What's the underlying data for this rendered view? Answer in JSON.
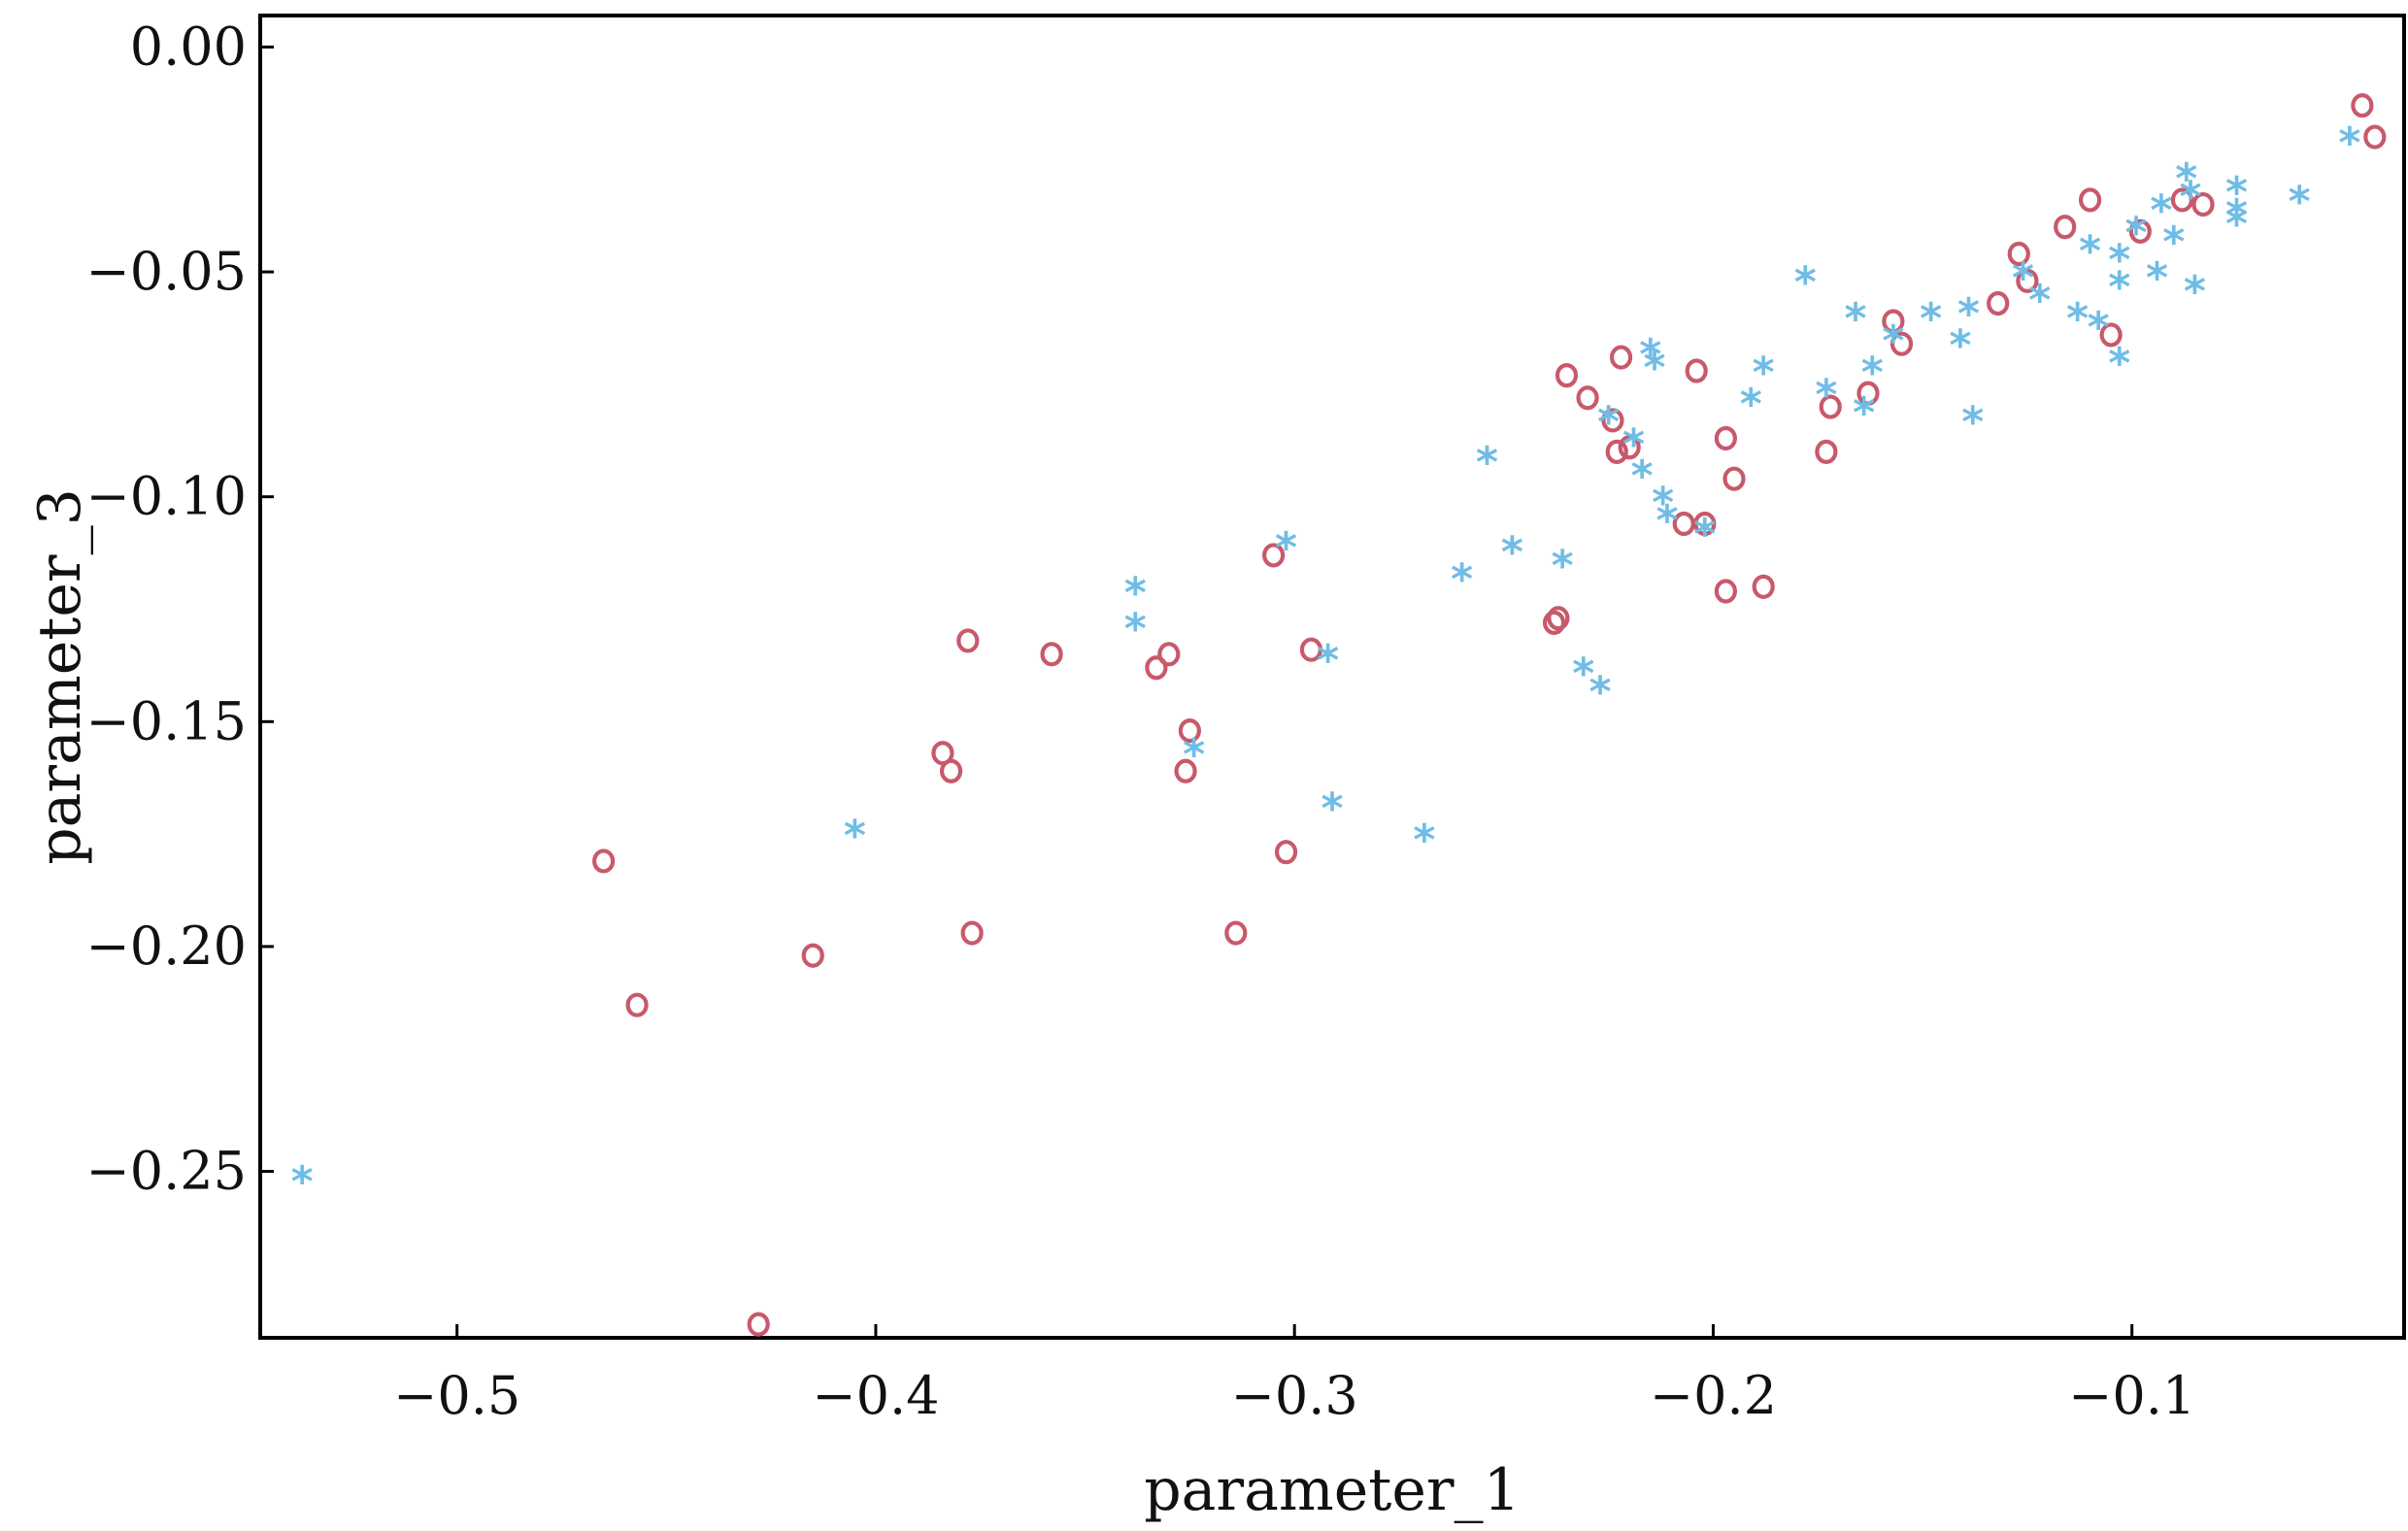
{
  "chart_data": {
    "type": "scatter",
    "title": "",
    "xlabel": "parameter_1",
    "ylabel": "parameter_3",
    "xlim": [
      -0.547,
      -0.035
    ],
    "ylim": [
      -0.287,
      0.007
    ],
    "x_ticks": [
      -0.5,
      -0.4,
      -0.3,
      -0.2,
      -0.1
    ],
    "x_tick_labels": [
      "−0.5",
      "−0.4",
      "−0.3",
      "−0.2",
      "−0.1"
    ],
    "y_ticks": [
      0.0,
      -0.05,
      -0.1,
      -0.15,
      -0.2,
      -0.25
    ],
    "y_tick_labels": [
      "0.00",
      "−0.05",
      "−0.10",
      "−0.15",
      "−0.20",
      "−0.25"
    ],
    "grid": false,
    "series": [
      {
        "marker": "o",
        "color": "#c8596b",
        "points": [
          [
            -0.465,
            -0.181
          ],
          [
            -0.457,
            -0.213
          ],
          [
            -0.428,
            -0.284
          ],
          [
            -0.415,
            -0.202
          ],
          [
            -0.384,
            -0.157
          ],
          [
            -0.382,
            -0.161
          ],
          [
            -0.378,
            -0.132
          ],
          [
            -0.377,
            -0.197
          ],
          [
            -0.358,
            -0.135
          ],
          [
            -0.333,
            -0.138
          ],
          [
            -0.33,
            -0.135
          ],
          [
            -0.326,
            -0.161
          ],
          [
            -0.325,
            -0.152
          ],
          [
            -0.314,
            -0.197
          ],
          [
            -0.305,
            -0.113
          ],
          [
            -0.302,
            -0.179
          ],
          [
            -0.296,
            -0.134
          ],
          [
            -0.238,
            -0.128
          ],
          [
            -0.237,
            -0.127
          ],
          [
            -0.235,
            -0.073
          ],
          [
            -0.23,
            -0.078
          ],
          [
            -0.224,
            -0.083
          ],
          [
            -0.223,
            -0.09
          ],
          [
            -0.222,
            -0.069
          ],
          [
            -0.22,
            -0.089
          ],
          [
            -0.207,
            -0.106
          ],
          [
            -0.204,
            -0.072
          ],
          [
            -0.202,
            -0.106
          ],
          [
            -0.197,
            -0.087
          ],
          [
            -0.197,
            -0.121
          ],
          [
            -0.195,
            -0.096
          ],
          [
            -0.188,
            -0.12
          ],
          [
            -0.173,
            -0.09
          ],
          [
            -0.172,
            -0.08
          ],
          [
            -0.163,
            -0.077
          ],
          [
            -0.157,
            -0.061
          ],
          [
            -0.155,
            -0.066
          ],
          [
            -0.132,
            -0.057
          ],
          [
            -0.127,
            -0.046
          ],
          [
            -0.125,
            -0.052
          ],
          [
            -0.116,
            -0.04
          ],
          [
            -0.11,
            -0.034
          ],
          [
            -0.105,
            -0.064
          ],
          [
            -0.098,
            -0.041
          ],
          [
            -0.088,
            -0.034
          ],
          [
            -0.083,
            -0.035
          ],
          [
            -0.045,
            -0.013
          ],
          [
            -0.042,
            -0.02
          ]
        ]
      },
      {
        "marker": "*",
        "color": "#6fbde6",
        "points": [
          [
            -0.537,
            -0.251
          ],
          [
            -0.405,
            -0.174
          ],
          [
            -0.338,
            -0.12
          ],
          [
            -0.338,
            -0.128
          ],
          [
            -0.324,
            -0.156
          ],
          [
            -0.302,
            -0.11
          ],
          [
            -0.292,
            -0.135
          ],
          [
            -0.291,
            -0.168
          ],
          [
            -0.269,
            -0.175
          ],
          [
            -0.26,
            -0.117
          ],
          [
            -0.254,
            -0.091
          ],
          [
            -0.248,
            -0.111
          ],
          [
            -0.236,
            -0.114
          ],
          [
            -0.231,
            -0.138
          ],
          [
            -0.227,
            -0.142
          ],
          [
            -0.225,
            -0.082
          ],
          [
            -0.219,
            -0.087
          ],
          [
            -0.217,
            -0.094
          ],
          [
            -0.215,
            -0.067
          ],
          [
            -0.214,
            -0.07
          ],
          [
            -0.212,
            -0.1
          ],
          [
            -0.211,
            -0.104
          ],
          [
            -0.202,
            -0.107
          ],
          [
            -0.191,
            -0.078
          ],
          [
            -0.188,
            -0.071
          ],
          [
            -0.178,
            -0.051
          ],
          [
            -0.173,
            -0.076
          ],
          [
            -0.166,
            -0.059
          ],
          [
            -0.164,
            -0.08
          ],
          [
            -0.162,
            -0.071
          ],
          [
            -0.157,
            -0.064
          ],
          [
            -0.148,
            -0.059
          ],
          [
            -0.141,
            -0.065
          ],
          [
            -0.139,
            -0.058
          ],
          [
            -0.138,
            -0.082
          ],
          [
            -0.126,
            -0.05
          ],
          [
            -0.122,
            -0.055
          ],
          [
            -0.113,
            -0.059
          ],
          [
            -0.11,
            -0.044
          ],
          [
            -0.108,
            -0.061
          ],
          [
            -0.103,
            -0.046
          ],
          [
            -0.103,
            -0.052
          ],
          [
            -0.103,
            -0.069
          ],
          [
            -0.099,
            -0.04
          ],
          [
            -0.094,
            -0.05
          ],
          [
            -0.093,
            -0.035
          ],
          [
            -0.09,
            -0.042
          ],
          [
            -0.087,
            -0.028
          ],
          [
            -0.086,
            -0.032
          ],
          [
            -0.085,
            -0.053
          ],
          [
            -0.075,
            -0.031
          ],
          [
            -0.075,
            -0.036
          ],
          [
            -0.075,
            -0.038
          ],
          [
            -0.06,
            -0.033
          ],
          [
            -0.048,
            -0.02
          ]
        ]
      }
    ]
  }
}
